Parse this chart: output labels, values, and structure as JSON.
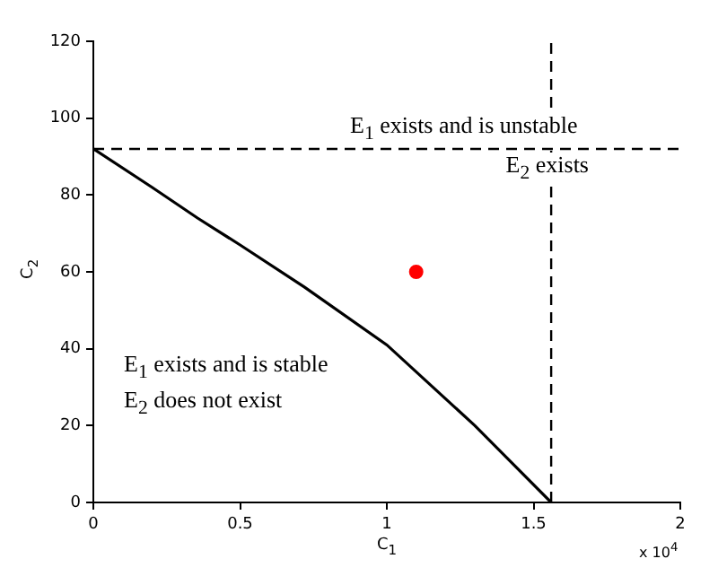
{
  "chart_data": {
    "type": "line",
    "xlabel": "C$_{1}$",
    "ylabel": "C$_{2}$",
    "xlim": [
      0,
      2
    ],
    "xticks": [
      0,
      0.5,
      1,
      1.5,
      2
    ],
    "ylim": [
      0,
      120
    ],
    "yticks": [
      0,
      20,
      40,
      60,
      80,
      100,
      120
    ],
    "grid": false,
    "legend": false,
    "series": [
      {
        "color": "#000000",
        "x": [
          0,
          0.2,
          0.355,
          0.5,
          0.72,
          1.0,
          1.3,
          1.56
        ],
        "values": [
          92,
          82,
          74,
          67,
          56,
          41,
          20,
          0
        ],
        "marker": "none",
        "line_style": "solid"
      },
      {
        "type": "scatter",
        "color": "#ff0000",
        "x": [
          1.1
        ],
        "values": [
          60
        ],
        "marker": "circle"
      }
    ],
    "ref_lines": [
      {
        "axis": "x",
        "value": 1.56,
        "color": "#000000",
        "line_style": "dashed"
      },
      {
        "axis": "y",
        "value": 92,
        "color": "#000000",
        "line_style": "dashed"
      }
    ],
    "annotations": [
      "E$_{1}$ exists and is unstable",
      "E$_{2}$ exists",
      "E$_{1}$ exists and is stable",
      "E$_{2}$ does not exist",
      "x 10$^{4}$"
    ]
  }
}
